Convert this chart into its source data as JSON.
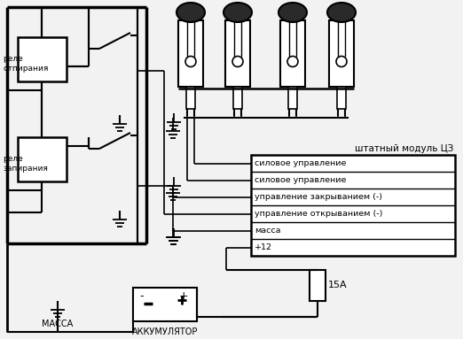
{
  "bg_color": "#f2f2f2",
  "line_color": "#000000",
  "relay1_label": "реле\nотпирания",
  "relay2_label": "реле\nзапирания",
  "module_label": "штатный модуль ЦЗ",
  "module_rows": [
    "силовое управление",
    "силовое управление",
    "управление закрыванием (-)",
    "управление открыванием (-)",
    "масса",
    "+12"
  ],
  "massa_label": "МАССА",
  "akk_label": "АККУМУЛЯТОР",
  "fuse_label": "15А"
}
